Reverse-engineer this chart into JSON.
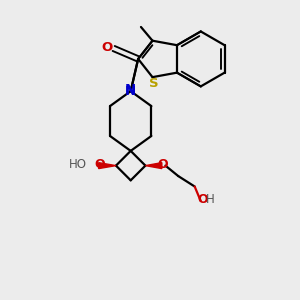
{
  "bg_color": "#ececec",
  "bond_color": "#000000",
  "N_color": "#0000cc",
  "O_color": "#cc0000",
  "S_color": "#b8a000",
  "line_width": 1.6,
  "figsize": [
    3.0,
    3.0
  ],
  "dpi": 100,
  "xlim": [
    0,
    10
  ],
  "ylim": [
    0,
    10
  ]
}
